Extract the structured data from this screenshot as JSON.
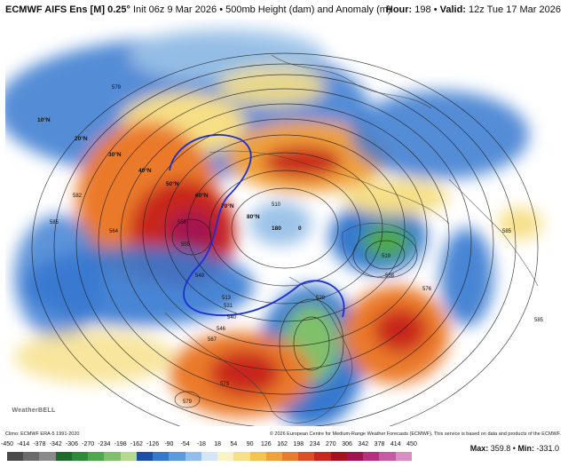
{
  "header": {
    "title": "ECMWF AIFS Ens [M] 0.25°",
    "init": "Init 06z 9 Mar 2026",
    "separator": "•",
    "field": "500mb Height (dam) and Anomaly (m)",
    "hour_label": "Hour:",
    "hour_value": "198",
    "valid_label": "Valid:",
    "valid_value": "12z Tue 17 Mar 2026"
  },
  "map": {
    "latitude_labels": [
      "10°N",
      "20°N",
      "30°N",
      "40°N",
      "50°N",
      "60°N",
      "70°N",
      "80°N"
    ],
    "longitude_labels": [
      "180",
      "0"
    ],
    "height_labels": [
      "579",
      "582",
      "585",
      "564",
      "558",
      "555",
      "549",
      "513",
      "531",
      "540",
      "546",
      "567",
      "573",
      "576",
      "579",
      "585",
      "519",
      "510",
      "528",
      "558",
      "585"
    ],
    "anomaly_colors": {
      "strong_negative": "#2e8b3a",
      "negative": "#3f7fd0",
      "weak_negative": "#9cc3e8",
      "weak_positive": "#f2e08a",
      "positive": "#f08a2e",
      "strong_positive": "#c8102e",
      "extreme_positive": "#b0207a"
    },
    "contour_color": "#1a1a1a",
    "highlight_contour_color": "#1a2fd6",
    "land_line_color": "#333333"
  },
  "credits": {
    "climo": "Climo: ECMWF ERA-5 1991-2020",
    "copyright": "© 2026 European Centre for Medium-Range Weather Forecasts (ECMWF). This service is based on data and products of the ECMWF."
  },
  "stats": {
    "max_label": "Max:",
    "max_value": "359.8",
    "sep": "•",
    "min_label": "Min:",
    "min_value": "-331.0"
  },
  "colorbar": {
    "ticks": [
      "-450",
      "-414",
      "-378",
      "-342",
      "-306",
      "-270",
      "-234",
      "-198",
      "-162",
      "-126",
      "-90",
      "-54",
      "-18",
      "18",
      "54",
      "90",
      "126",
      "162",
      "198",
      "234",
      "270",
      "306",
      "342",
      "378",
      "414",
      "450"
    ],
    "colors": [
      "#4a4a4a",
      "#6b6b6b",
      "#8a8a8a",
      "#1f6b2c",
      "#2f8a3a",
      "#4fa84a",
      "#80c06a",
      "#b5d98f",
      "#1e4fa8",
      "#3578cf",
      "#5d9be0",
      "#93bdec",
      "#d6e6f7",
      "#fbf3c6",
      "#f6df86",
      "#f3c54f",
      "#f0a23a",
      "#ea7a2c",
      "#dc4f24",
      "#c8261f",
      "#a8101f",
      "#a3144f",
      "#b7307f",
      "#c75aa5",
      "#d98dc4"
    ]
  },
  "watermark": "WeatherBELL"
}
